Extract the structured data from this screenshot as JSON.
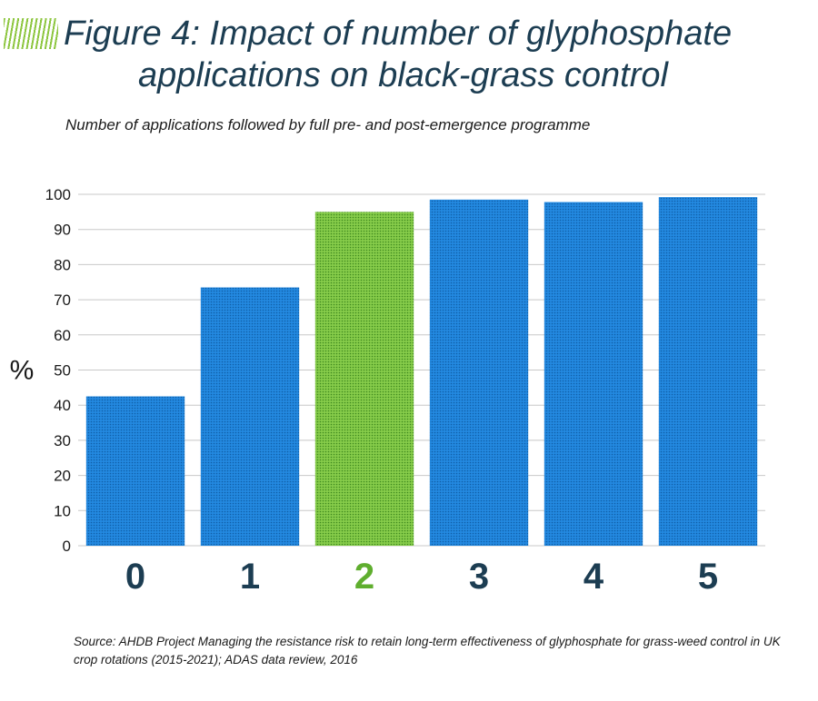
{
  "title": {
    "line1": "Figure 4: Impact of number of glyphosphate",
    "line2": "applications on black-grass control"
  },
  "subtitle": "Number of applications followed by full pre- and post-emergence programme",
  "source": "Source: AHDB Project Managing the resistance risk to retain long-term effectiveness of glyphosphate for grass-weed control in UK crop rotations (2015-2021); ADAS data review, 2016",
  "colors": {
    "bar_default": "#1a7fd4",
    "bar_highlight": "#7dc242",
    "label_default": "#1c3d52",
    "label_highlight": "#5fae2e"
  },
  "chart_data": {
    "type": "bar",
    "categories": [
      "0",
      "1",
      "2",
      "3",
      "4",
      "5"
    ],
    "values": [
      42.5,
      73.5,
      95,
      98.5,
      97.8,
      99.2
    ],
    "highlight_index": 2,
    "title": "",
    "xlabel": "",
    "ylabel": "%",
    "ylim": [
      0,
      100
    ],
    "yticks": [
      0,
      10,
      20,
      30,
      40,
      50,
      60,
      70,
      80,
      90,
      100
    ],
    "grid": true
  }
}
